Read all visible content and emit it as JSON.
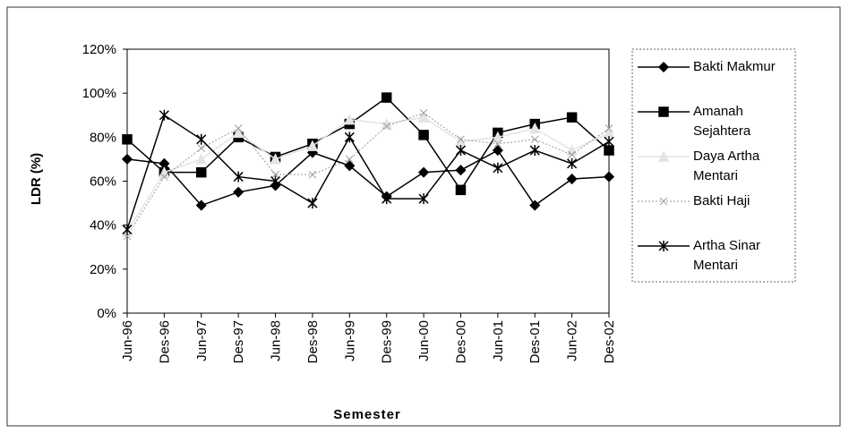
{
  "chart_data": {
    "type": "line",
    "x_label": "Semester",
    "y_label": "LDR (%)",
    "categories": [
      "Jun-96",
      "Des-96",
      "Jun-97",
      "Des-97",
      "Jun-98",
      "Des-98",
      "Jun-99",
      "Des-99",
      "Jun-00",
      "Des-00",
      "Jun-01",
      "Des-01",
      "Jun-02",
      "Des-02"
    ],
    "series": [
      {
        "name": "Bakti Makmur",
        "color": "#000000",
        "marker": "diamond",
        "values": [
          70,
          68,
          49,
          55,
          58,
          73,
          67,
          53,
          64,
          65,
          74,
          49,
          61,
          62
        ]
      },
      {
        "name": "Amanah Sejahtera",
        "color": "#000000",
        "marker": "square",
        "values": [
          79,
          64,
          64,
          80,
          71,
          77,
          86,
          98,
          81,
          56,
          82,
          86,
          89,
          74
        ]
      },
      {
        "name": "Daya Artha Mentari",
        "color": "#e4e4e4",
        "marker": "triangle",
        "values": [
          37,
          64,
          70,
          82,
          70,
          76,
          88,
          86,
          89,
          78,
          80,
          84,
          74,
          82
        ]
      },
      {
        "name": "Bakti Haji",
        "color": "#9a9a9a",
        "marker": "x",
        "dashed": true,
        "values": [
          35,
          62,
          75,
          84,
          63,
          63,
          70,
          85,
          91,
          79,
          77,
          79,
          72,
          84
        ]
      },
      {
        "name": "Artha Sinar Mentari",
        "color": "#000000",
        "marker": "asterisk",
        "values": [
          38,
          90,
          79,
          62,
          60,
          50,
          80,
          52,
          52,
          74,
          66,
          74,
          68,
          78
        ]
      }
    ],
    "ylim": [
      0,
      120
    ],
    "yticks": [
      {
        "value": 0,
        "label": "0%"
      },
      {
        "value": 20,
        "label": "20%"
      },
      {
        "value": 40,
        "label": "40%"
      },
      {
        "value": 60,
        "label": "60%"
      },
      {
        "value": 80,
        "label": "80%"
      },
      {
        "value": 100,
        "label": "100%"
      },
      {
        "value": 120,
        "label": "120%"
      }
    ],
    "grid": false,
    "legend": "right"
  }
}
